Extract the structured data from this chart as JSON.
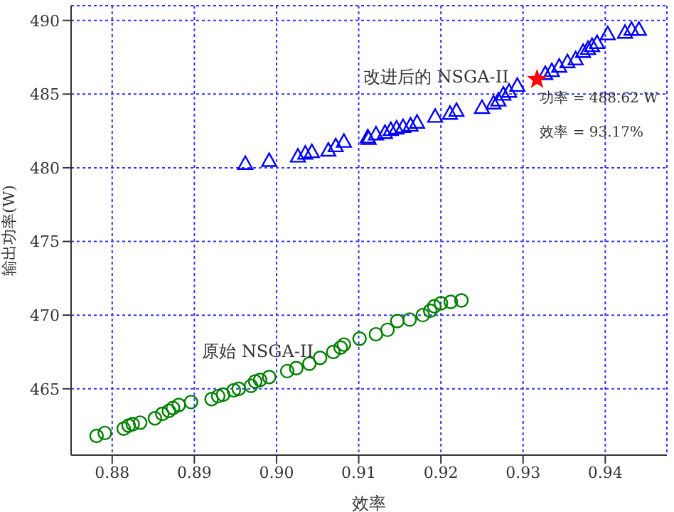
{
  "chart_data": {
    "type": "scatter",
    "xlabel": "效率",
    "ylabel": "输出功率(W)",
    "xlim": [
      0.875,
      0.9475
    ],
    "ylim": [
      460.5,
      491
    ],
    "xticks": [
      {
        "value": 0.88,
        "label": "0.88"
      },
      {
        "value": 0.89,
        "label": "0.89"
      },
      {
        "value": 0.9,
        "label": "0.90"
      },
      {
        "value": 0.91,
        "label": "0.91"
      },
      {
        "value": 0.92,
        "label": "0.92"
      },
      {
        "value": 0.93,
        "label": "0.93"
      },
      {
        "value": 0.94,
        "label": "0.94"
      }
    ],
    "yticks": [
      465,
      470,
      475,
      480,
      485,
      490
    ],
    "grid": true,
    "annotations": [
      "功率 = 488.62 W",
      "效率 = 93.17%"
    ],
    "series": [
      {
        "name": "原始 NSGA-II",
        "color": "#008000",
        "marker": "circle",
        "x": [
          0.8781,
          0.8791,
          0.8814,
          0.882,
          0.8825,
          0.8834,
          0.8852,
          0.8861,
          0.8869,
          0.8874,
          0.8881,
          0.8896,
          0.8921,
          0.8929,
          0.8935,
          0.8948,
          0.8954,
          0.8969,
          0.8974,
          0.898,
          0.8991,
          0.9013,
          0.9024,
          0.904,
          0.9053,
          0.9069,
          0.9078,
          0.9082,
          0.9101,
          0.9121,
          0.9135,
          0.9147,
          0.9162,
          0.9178,
          0.9187,
          0.9192,
          0.92,
          0.9212,
          0.9225
        ],
        "values": [
          461.8,
          462.0,
          462.3,
          462.5,
          462.6,
          462.7,
          463.0,
          463.3,
          463.5,
          463.7,
          463.9,
          464.1,
          464.3,
          464.5,
          464.6,
          464.9,
          465.0,
          465.2,
          465.5,
          465.6,
          465.8,
          466.2,
          466.4,
          466.7,
          467.1,
          467.5,
          467.8,
          468.0,
          468.4,
          468.7,
          469.0,
          469.6,
          469.7,
          470.0,
          470.3,
          470.6,
          470.8,
          470.9,
          471.0
        ]
      },
      {
        "name": "改进后的 NSGA-II",
        "color": "#0000ff",
        "marker": "triangle",
        "x": [
          0.8962,
          0.8991,
          0.9026,
          0.9035,
          0.9043,
          0.9063,
          0.9072,
          0.9082,
          0.9111,
          0.9112,
          0.9121,
          0.9132,
          0.9139,
          0.9146,
          0.9154,
          0.9163,
          0.9171,
          0.9193,
          0.9211,
          0.9219,
          0.925,
          0.9264,
          0.927,
          0.9276,
          0.9283,
          0.9293,
          0.9327,
          0.9335,
          0.9344,
          0.9354,
          0.9364,
          0.9373,
          0.9379,
          0.9384,
          0.939,
          0.9403,
          0.9424,
          0.9432,
          0.9441
        ],
        "values": [
          480.3,
          480.5,
          480.8,
          481.0,
          481.1,
          481.2,
          481.5,
          481.8,
          482.1,
          482.0,
          482.3,
          482.4,
          482.6,
          482.7,
          482.8,
          482.9,
          483.1,
          483.5,
          483.7,
          483.9,
          484.1,
          484.4,
          484.6,
          485.0,
          485.2,
          485.6,
          486.4,
          486.6,
          486.9,
          487.2,
          487.4,
          487.9,
          488.1,
          488.3,
          488.5,
          489.1,
          489.2,
          489.4,
          489.4
        ]
      },
      {
        "color": "#ff0000",
        "marker": "star",
        "x": [
          0.9317
        ],
        "values": [
          486.0
        ]
      }
    ]
  }
}
